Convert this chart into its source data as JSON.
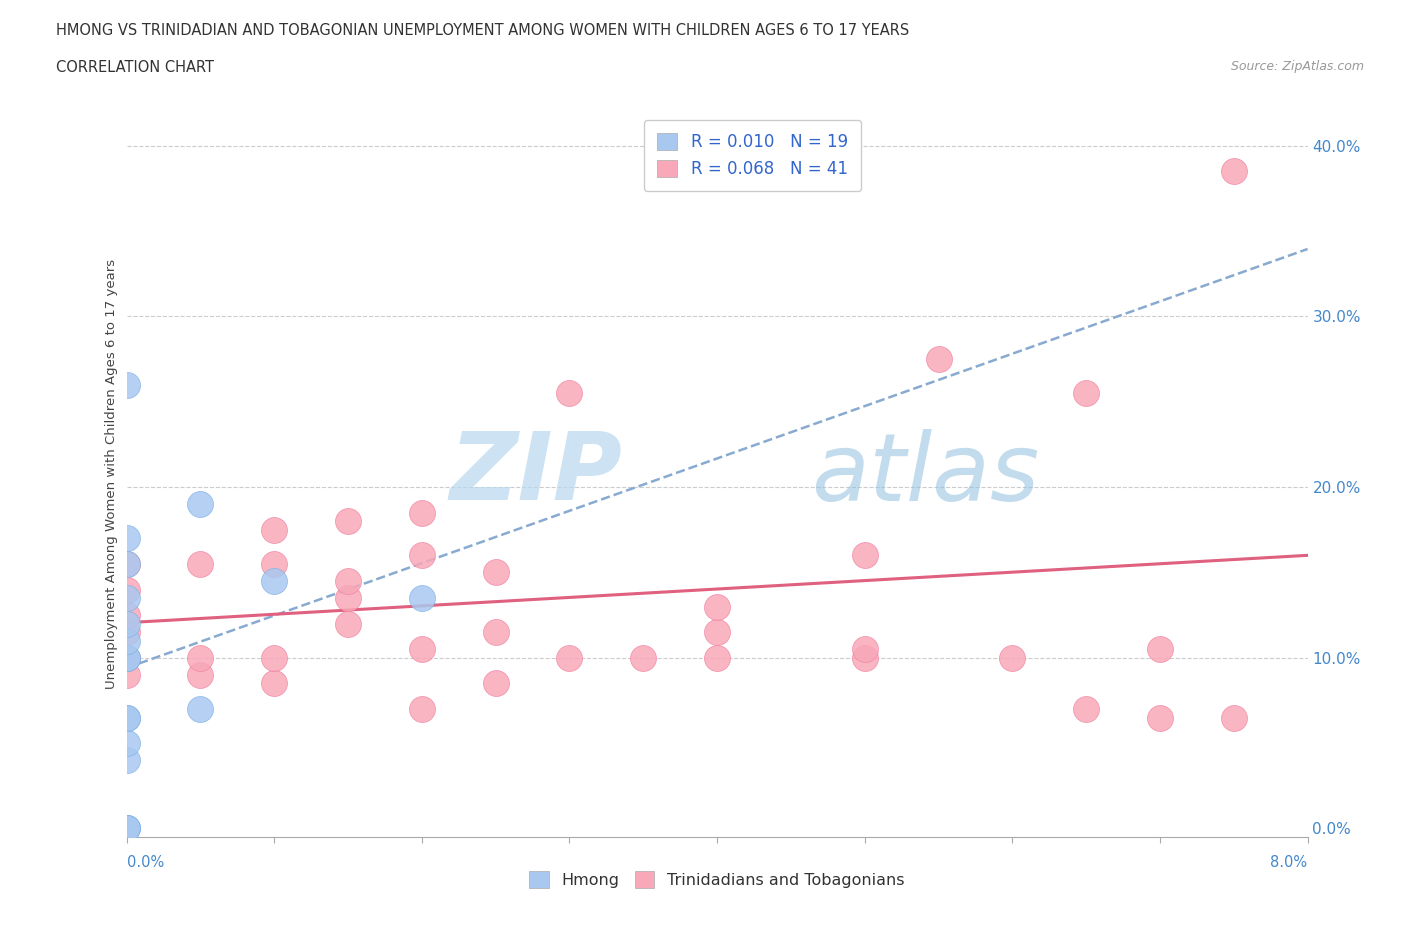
{
  "title_line1": "HMONG VS TRINIDADIAN AND TOBAGONIAN UNEMPLOYMENT AMONG WOMEN WITH CHILDREN AGES 6 TO 17 YEARS",
  "title_line2": "CORRELATION CHART",
  "source_text": "Source: ZipAtlas.com",
  "ylabel": "Unemployment Among Women with Children Ages 6 to 17 years",
  "legend_label1": "Hmong",
  "legend_label2": "Trinidadians and Tobagonians",
  "r1": 0.01,
  "n1": 19,
  "r2": 0.068,
  "n2": 41,
  "color1": "#a8c8f0",
  "color2": "#f8a8b8",
  "color1_edge": "#7ab0e8",
  "color2_edge": "#f080a0",
  "trendline1_color": "#88aad0",
  "trendline2_color": "#e06080",
  "watermark_color": "#d0e8f5",
  "xlim": [
    0.0,
    0.08
  ],
  "ylim": [
    -0.005,
    0.42
  ],
  "yticks": [
    0.0,
    0.1,
    0.2,
    0.3,
    0.4
  ],
  "xticks": [
    0.0,
    0.01,
    0.02,
    0.03,
    0.04,
    0.05,
    0.06,
    0.07,
    0.08
  ],
  "hmong_x": [
    0.0,
    0.0,
    0.0,
    0.0,
    0.0,
    0.0,
    0.0,
    0.0,
    0.0,
    0.0,
    0.0,
    0.0,
    0.0,
    0.0,
    0.0,
    0.005,
    0.005,
    0.01,
    0.02
  ],
  "hmong_y": [
    0.0,
    0.0,
    0.0,
    0.04,
    0.05,
    0.065,
    0.065,
    0.1,
    0.1,
    0.11,
    0.12,
    0.135,
    0.155,
    0.17,
    0.26,
    0.07,
    0.19,
    0.145,
    0.135
  ],
  "trini_x": [
    0.0,
    0.0,
    0.0,
    0.0,
    0.0,
    0.0,
    0.005,
    0.005,
    0.005,
    0.01,
    0.01,
    0.01,
    0.01,
    0.015,
    0.015,
    0.015,
    0.015,
    0.02,
    0.02,
    0.02,
    0.02,
    0.025,
    0.025,
    0.025,
    0.03,
    0.03,
    0.035,
    0.04,
    0.04,
    0.04,
    0.05,
    0.05,
    0.05,
    0.055,
    0.06,
    0.065,
    0.065,
    0.07,
    0.07,
    0.075,
    0.075
  ],
  "trini_y": [
    0.09,
    0.1,
    0.115,
    0.125,
    0.14,
    0.155,
    0.09,
    0.1,
    0.155,
    0.085,
    0.1,
    0.155,
    0.175,
    0.12,
    0.135,
    0.145,
    0.18,
    0.07,
    0.105,
    0.16,
    0.185,
    0.085,
    0.115,
    0.15,
    0.1,
    0.255,
    0.1,
    0.1,
    0.115,
    0.13,
    0.1,
    0.105,
    0.16,
    0.275,
    0.1,
    0.07,
    0.255,
    0.065,
    0.105,
    0.065,
    0.385
  ]
}
